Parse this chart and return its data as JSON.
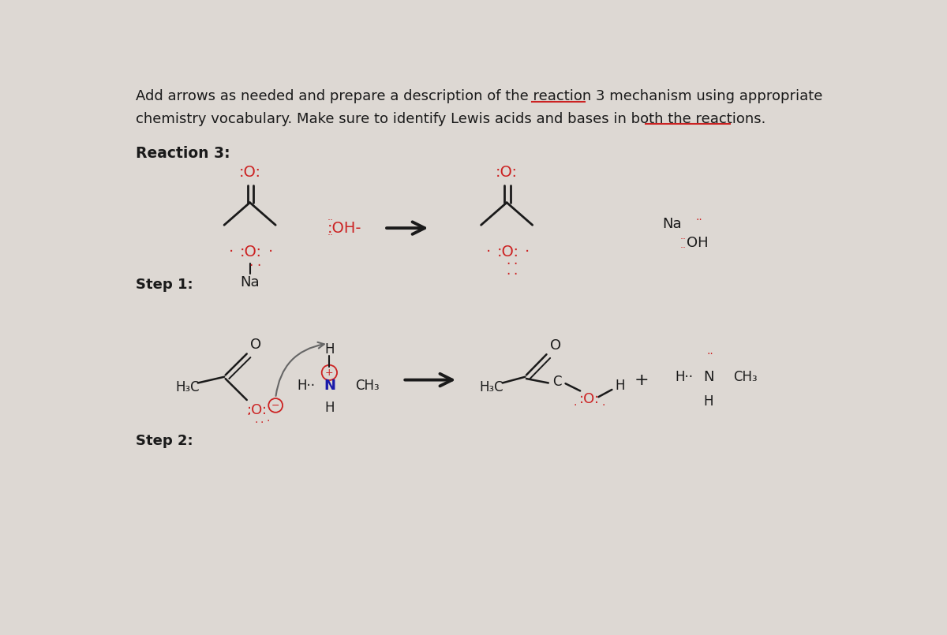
{
  "bg_color": "#ddd8d3",
  "text_color": "#1a1a1a",
  "red_color": "#cc2222",
  "blue_color": "#1a1aaa",
  "line1": "Add arrows as needed and prepare a description of the reaction 3 mechanism using appropriate",
  "line2": "chemistry vocabulary. Make sure to identify Lewis acids and bases in both the reactions.",
  "underline1_start": "mechanism",
  "underline2_start": "the reactions.",
  "reaction_label": "Reaction 3:",
  "step1_label": "Step 1:",
  "step2_label": "Step 2:"
}
